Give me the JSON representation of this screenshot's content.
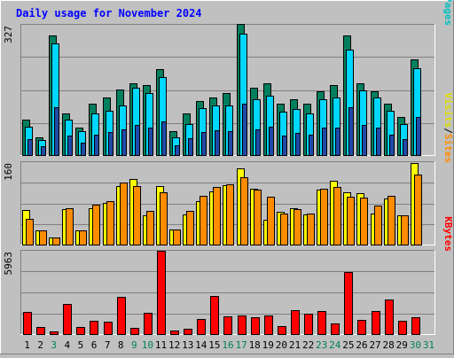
{
  "chart_data": {
    "type": "bar",
    "title": "Daily usage for November 2024",
    "categories": [
      "1",
      "2",
      "3",
      "4",
      "5",
      "6",
      "7",
      "8",
      "9",
      "10",
      "11",
      "12",
      "13",
      "14",
      "15",
      "16",
      "17",
      "18",
      "19",
      "20",
      "21",
      "22",
      "23",
      "24",
      "25",
      "26",
      "27",
      "28",
      "29",
      "30",
      "31"
    ],
    "weekend_days": [
      3,
      9,
      10,
      16,
      17,
      23,
      24,
      30,
      31
    ],
    "colors": {
      "hits": "#007f5f",
      "files": "#00d7ff",
      "pages": "#1f4aa8",
      "visits": "#ffff00",
      "sites": "#ff8c00",
      "kbytes": "#ff0000",
      "weekday_label": "#000000",
      "weekend_label": "#00805a"
    },
    "panels": [
      {
        "name": "hits-files-pages",
        "max_label": "327",
        "ylim": [
          0,
          327
        ],
        "legend": [
          {
            "text": "Pages",
            "color": "#00c0c0"
          },
          {
            "text": "/",
            "color": "#000000"
          },
          {
            "text": "Files",
            "color": "#0000ff"
          },
          {
            "text": "/",
            "color": "#000000"
          },
          {
            "text": "Hits",
            "color": "#008080"
          }
        ],
        "series": [
          {
            "name": "Hits",
            "values": [
              90,
              45,
              300,
              105,
              70,
              130,
              145,
              165,
              180,
              175,
              215,
              60,
              105,
              135,
              145,
              155,
              330,
              170,
              180,
              130,
              140,
              130,
              160,
              175,
              300,
              180,
              160,
              130,
              95,
              240,
              0
            ]
          },
          {
            "name": "Files",
            "values": [
              72,
              38,
              280,
              90,
              60,
              105,
              112,
              125,
              170,
              155,
              195,
              45,
              78,
              118,
              125,
              125,
              305,
              140,
              150,
              108,
              115,
              105,
              140,
              145,
              265,
              162,
              145,
              112,
              78,
              218,
              0
            ]
          },
          {
            "name": "Pages",
            "values": [
              40,
              22,
              120,
              48,
              32,
              52,
              58,
              65,
              75,
              70,
              85,
              25,
              42,
              58,
              62,
              60,
              130,
              65,
              72,
              50,
              55,
              52,
              68,
              70,
              120,
              75,
              68,
              52,
              40,
              95,
              0
            ]
          }
        ]
      },
      {
        "name": "visits-sites",
        "max_label": "160",
        "ylim": [
          0,
          160
        ],
        "legend": [
          {
            "text": "Sites",
            "color": "#ff8c00"
          },
          {
            "text": "/",
            "color": "#000000"
          },
          {
            "text": "Visits",
            "color": "#e0e000"
          }
        ],
        "series": [
          {
            "name": "Visits",
            "values": [
              67,
              27,
              14,
              69,
              27,
              71,
              80,
              113,
              127,
              56,
              113,
              30,
              59,
              85,
              103,
              116,
              148,
              108,
              49,
              63,
              70,
              58,
              107,
              124,
              101,
              99,
              61,
              90,
              56,
              158,
              0
            ]
          },
          {
            "name": "Sites",
            "values": [
              50,
              27,
              14,
              70,
              27,
              77,
              84,
              121,
              114,
              65,
              102,
              30,
              65,
              94,
              112,
              117,
              130,
              107,
              93,
              60,
              68,
              60,
              108,
              112,
              93,
              92,
              75,
              94,
              57,
              136,
              0
            ]
          }
        ]
      },
      {
        "name": "kbytes",
        "max_label": "5963",
        "ylim": [
          0,
          5963
        ],
        "legend": [
          {
            "text": "KBytes",
            "color": "#ff0000"
          }
        ],
        "series": [
          {
            "name": "KBytes",
            "values": [
              1600,
              520,
              180,
              2130,
              520,
              970,
              870,
              2640,
              470,
              1500,
              5950,
              250,
              400,
              1060,
              2700,
              1260,
              1330,
              1180,
              1310,
              570,
              1700,
              1480,
              1660,
              760,
              4470,
              1000,
              1630,
              2500,
              920,
              1180,
              0
            ]
          }
        ]
      }
    ]
  }
}
